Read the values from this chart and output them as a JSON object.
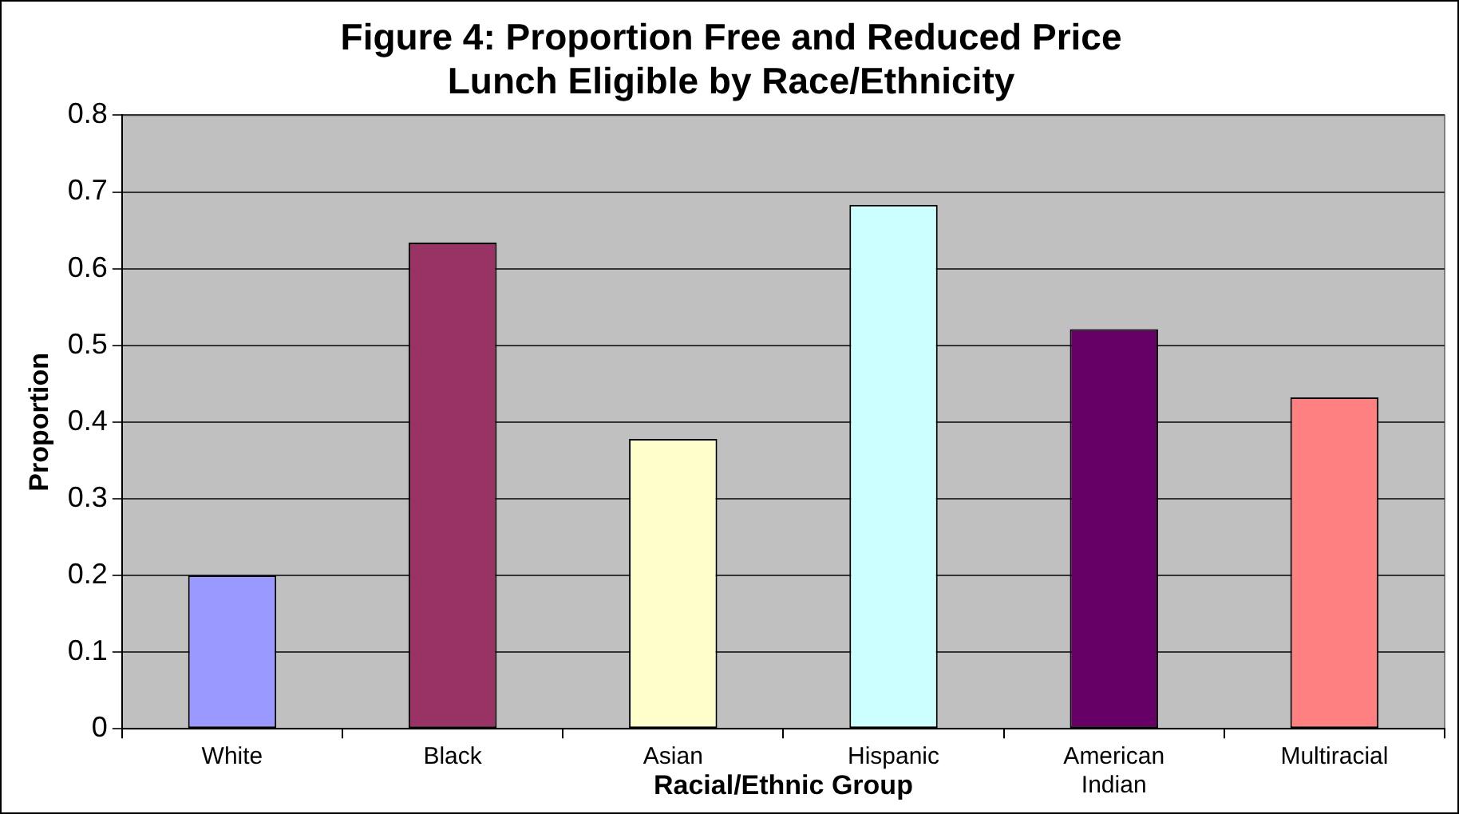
{
  "chart_data": {
    "type": "bar",
    "title": "Figure 4: Proportion Free and Reduced Price Lunch Eligible by Race/Ethnicity",
    "xlabel": "Racial/Ethnic Group",
    "ylabel": "Proportion",
    "categories": [
      "White",
      "Black",
      "Asian",
      "Hispanic",
      "American Indian",
      "Multiracial"
    ],
    "values": [
      0.2,
      0.634,
      0.378,
      0.683,
      0.521,
      0.432
    ],
    "colors": [
      "#9999ff",
      "#993366",
      "#ffffcc",
      "#ccffff",
      "#660066",
      "#ff8080"
    ],
    "ylim": [
      0,
      0.8
    ],
    "yticks": [
      0,
      0.1,
      0.2,
      0.3,
      0.4,
      0.5,
      0.6,
      0.7,
      0.8
    ],
    "grid": "y",
    "legend": false
  }
}
